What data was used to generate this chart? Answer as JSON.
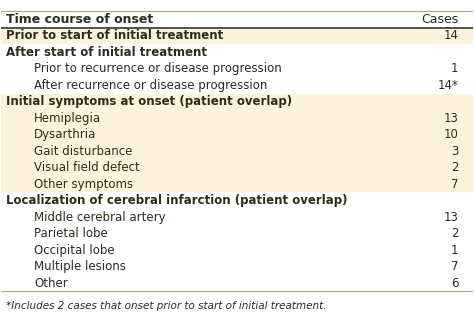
{
  "rows": [
    {
      "label": "Time course of onset",
      "value": "Cases",
      "level": 0,
      "style": "header",
      "bg": "#ffffff"
    },
    {
      "label": "Prior to start of initial treatment",
      "value": "14",
      "level": 0,
      "style": "bold",
      "bg": "#fdf3dc"
    },
    {
      "label": "After start of initial treatment",
      "value": "",
      "level": 0,
      "style": "bold",
      "bg": "#ffffff"
    },
    {
      "label": "Prior to recurrence or disease progression",
      "value": "1",
      "level": 1,
      "style": "normal",
      "bg": "#ffffff"
    },
    {
      "label": "After recurrence or disease progression",
      "value": "14*",
      "level": 1,
      "style": "normal",
      "bg": "#ffffff"
    },
    {
      "label": "Initial symptoms at onset (patient overlap)",
      "value": "",
      "level": 0,
      "style": "bold",
      "bg": "#fdf3dc"
    },
    {
      "label": "Hemiplegia",
      "value": "13",
      "level": 1,
      "style": "normal",
      "bg": "#fdf3dc"
    },
    {
      "label": "Dysarthria",
      "value": "10",
      "level": 1,
      "style": "normal",
      "bg": "#fdf3dc"
    },
    {
      "label": "Gait disturbance",
      "value": "3",
      "level": 1,
      "style": "normal",
      "bg": "#fdf3dc"
    },
    {
      "label": "Visual field defect",
      "value": "2",
      "level": 1,
      "style": "normal",
      "bg": "#fdf3dc"
    },
    {
      "label": "Other symptoms",
      "value": "7",
      "level": 1,
      "style": "normal",
      "bg": "#fdf3dc"
    },
    {
      "label": "Localization of cerebral infarction (patient overlap)",
      "value": "",
      "level": 0,
      "style": "bold",
      "bg": "#ffffff"
    },
    {
      "label": "Middle cerebral artery",
      "value": "13",
      "level": 1,
      "style": "normal",
      "bg": "#ffffff"
    },
    {
      "label": "Parietal lobe",
      "value": "2",
      "level": 1,
      "style": "normal",
      "bg": "#ffffff"
    },
    {
      "label": "Occipital lobe",
      "value": "1",
      "level": 1,
      "style": "normal",
      "bg": "#ffffff"
    },
    {
      "label": "Multiple lesions",
      "value": "7",
      "level": 1,
      "style": "normal",
      "bg": "#ffffff"
    },
    {
      "label": "Other",
      "value": "6",
      "level": 1,
      "style": "normal",
      "bg": "#ffffff"
    }
  ],
  "footnote": "*Includes 2 cases that onset prior to start of initial treatment.",
  "header_bg": "#ffffff",
  "alt_bg": "#fdf3dc",
  "text_color": "#2c2c1e",
  "header_text_color": "#2c2c1e",
  "border_color": "#b5a97a",
  "font_size": 8.5,
  "header_font_size": 9.0,
  "footnote_font_size": 7.5
}
